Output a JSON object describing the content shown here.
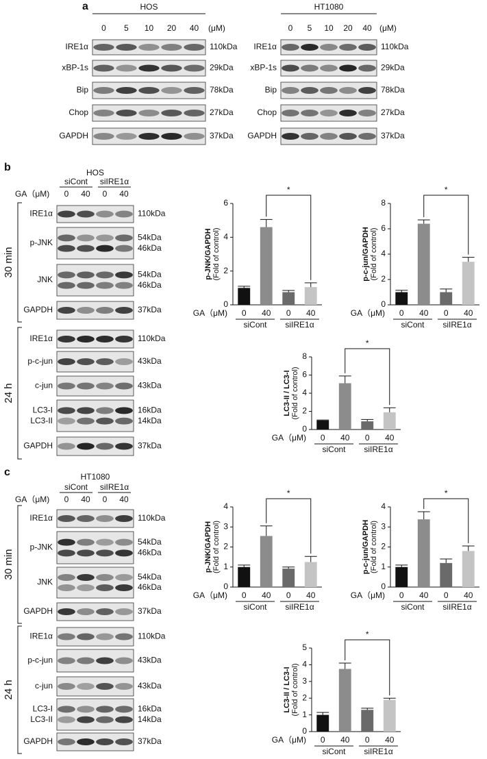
{
  "figure": {
    "panel_a": {
      "label": "a",
      "blots": [
        {
          "cell": "HOS",
          "doses": [
            "0",
            "5",
            "10",
            "20",
            "40"
          ],
          "unit": "(μM)",
          "rows": [
            {
              "labels": [
                "IRE1α"
              ],
              "sizes": [
                "110kDa"
              ]
            },
            {
              "labels": [
                "xBP-1s"
              ],
              "sizes": [
                "29kDa"
              ]
            },
            {
              "labels": [
                "Bip"
              ],
              "sizes": [
                "78kDa"
              ]
            },
            {
              "labels": [
                "Chop"
              ],
              "sizes": [
                "27kDa"
              ]
            },
            {
              "labels": [
                "GAPDH"
              ],
              "sizes": [
                "37kDa"
              ]
            }
          ]
        },
        {
          "cell": "HT1080",
          "doses": [
            "0",
            "5",
            "10",
            "20",
            "40"
          ],
          "unit": "(μM)",
          "rows": [
            {
              "labels": [
                "IRE1α"
              ],
              "sizes": [
                "110kDa"
              ]
            },
            {
              "labels": [
                "xBP-1s"
              ],
              "sizes": [
                "29kDa"
              ]
            },
            {
              "labels": [
                "Bip"
              ],
              "sizes": [
                "78kDa"
              ]
            },
            {
              "labels": [
                "Chop"
              ],
              "sizes": [
                "27kDa"
              ]
            },
            {
              "labels": [
                "GAPDH"
              ],
              "sizes": [
                "37kDa"
              ]
            }
          ]
        }
      ]
    },
    "panel_b": {
      "label": "b",
      "cell": "HOS",
      "groups": [
        "siCont",
        "siIRE1α"
      ],
      "dose_label": "GA（μM)",
      "doses": [
        "0",
        "40",
        "0",
        "40"
      ],
      "blocks": [
        {
          "time": "30 min",
          "rows": [
            {
              "labels": [
                "IRE1α"
              ],
              "sizes": [
                "110kDa"
              ]
            },
            {
              "labels": [
                "p-JNK"
              ],
              "sizes": [
                "54kDa",
                "46kDa"
              ]
            },
            {
              "labels": [
                "JNK"
              ],
              "sizes": [
                "54kDa",
                "46kDa"
              ]
            },
            {
              "labels": [
                "GAPDH"
              ],
              "sizes": [
                "37kDa"
              ]
            }
          ]
        },
        {
          "time": "24 h",
          "rows": [
            {
              "labels": [
                "IRE1α"
              ],
              "sizes": [
                "110kDa"
              ]
            },
            {
              "labels": [
                "p-c-jun"
              ],
              "sizes": [
                "43kDa"
              ]
            },
            {
              "labels": [
                "c-jun"
              ],
              "sizes": [
                "43kDa"
              ]
            },
            {
              "labels": [
                "LC3-I",
                "LC3-II"
              ],
              "sizes": [
                "16kDa",
                "14kDa"
              ]
            },
            {
              "labels": [
                "GAPDH"
              ],
              "sizes": [
                "37kDa"
              ]
            }
          ]
        }
      ]
    },
    "panel_c": {
      "label": "c",
      "cell": "HT1080",
      "groups": [
        "siCont",
        "siIRE1α"
      ],
      "dose_label": "GA（μM)",
      "doses": [
        "0",
        "40",
        "0",
        "40"
      ],
      "blocks": [
        {
          "time": "30 min",
          "rows": [
            {
              "labels": [
                "IRE1α"
              ],
              "sizes": [
                "110kDa"
              ]
            },
            {
              "labels": [
                "p-JNK"
              ],
              "sizes": [
                "54kDa",
                "46kDa"
              ]
            },
            {
              "labels": [
                "JNK"
              ],
              "sizes": [
                "54kDa",
                "46kDa"
              ]
            },
            {
              "labels": [
                "GAPDH"
              ],
              "sizes": [
                "37kDa"
              ]
            }
          ]
        },
        {
          "time": "24 h",
          "rows": [
            {
              "labels": [
                "IRE1α"
              ],
              "sizes": [
                "110kDa"
              ]
            },
            {
              "labels": [
                "p-c-jun"
              ],
              "sizes": [
                "43kDa"
              ]
            },
            {
              "labels": [
                "c-jun"
              ],
              "sizes": [
                "43kDa"
              ]
            },
            {
              "labels": [
                "LC3-I",
                "LC3-II"
              ],
              "sizes": [
                "16kDa",
                "14kDa"
              ]
            },
            {
              "labels": [
                "GAPDH"
              ],
              "sizes": [
                "37kDa"
              ]
            }
          ]
        }
      ]
    }
  },
  "chart_data": [
    {
      "type": "bar",
      "y_label": "p-JNK/GAPDH",
      "y_sublabel": "(Fold of control)",
      "x_label": "GA（μM)",
      "categories": [
        "0",
        "40",
        "0",
        "40"
      ],
      "groups": [
        "siCont",
        "siIRE1α"
      ],
      "values": [
        1.0,
        4.6,
        0.75,
        1.05
      ],
      "errors": [
        0.1,
        0.45,
        0.1,
        0.25
      ],
      "colors": [
        "#111111",
        "#8c8c8c",
        "#6a6a6a",
        "#c4c4c4"
      ],
      "ylim": [
        0,
        6
      ],
      "yticks": [
        0,
        2,
        4,
        6
      ],
      "annotation": "*"
    },
    {
      "type": "bar",
      "y_label": "p-c-jun/GAPDH",
      "y_sublabel": "(Fold of control)",
      "x_label": "GA（μM)",
      "categories": [
        "0",
        "40",
        "0",
        "40"
      ],
      "groups": [
        "siCont",
        "siIRE1α"
      ],
      "values": [
        1.0,
        6.4,
        1.0,
        3.4
      ],
      "errors": [
        0.15,
        0.3,
        0.25,
        0.35
      ],
      "colors": [
        "#111111",
        "#8c8c8c",
        "#6a6a6a",
        "#c4c4c4"
      ],
      "ylim": [
        0,
        8
      ],
      "yticks": [
        0,
        2,
        4,
        6,
        8
      ],
      "annotation": "*"
    },
    {
      "type": "bar",
      "y_label": "LC3-II / LC3-I",
      "y_sublabel": "(Fold of control)",
      "x_label": "GA（μM)",
      "categories": [
        "0",
        "40",
        "0",
        "40"
      ],
      "groups": [
        "siCont",
        "siIRE1α"
      ],
      "values": [
        1.0,
        5.1,
        0.9,
        1.9
      ],
      "errors": [
        0.05,
        0.8,
        0.2,
        0.5
      ],
      "colors": [
        "#111111",
        "#8c8c8c",
        "#6a6a6a",
        "#c4c4c4"
      ],
      "ylim": [
        0,
        8
      ],
      "yticks": [
        0,
        2,
        4,
        6,
        8
      ],
      "annotation": "*"
    },
    {
      "type": "bar",
      "y_label": "p-JNK/GAPDH",
      "y_sublabel": "(Fold of control)",
      "x_label": "GA（μM)",
      "categories": [
        "0",
        "40",
        "0",
        "40"
      ],
      "groups": [
        "siCont",
        "siIRE1α"
      ],
      "values": [
        1.0,
        2.55,
        0.92,
        1.25
      ],
      "errors": [
        0.1,
        0.5,
        0.08,
        0.28
      ],
      "colors": [
        "#111111",
        "#8c8c8c",
        "#6a6a6a",
        "#c4c4c4"
      ],
      "ylim": [
        0,
        4
      ],
      "yticks": [
        0,
        1,
        2,
        3,
        4
      ],
      "annotation": "*"
    },
    {
      "type": "bar",
      "y_label": "p-c-jun/GAPDH",
      "y_sublabel": "(Fold of control)",
      "x_label": "GA（μM)",
      "categories": [
        "0",
        "40",
        "0",
        "40"
      ],
      "groups": [
        "siCont",
        "siIRE1α"
      ],
      "values": [
        1.0,
        3.38,
        1.2,
        1.8
      ],
      "errors": [
        0.1,
        0.38,
        0.2,
        0.25
      ],
      "colors": [
        "#111111",
        "#8c8c8c",
        "#6a6a6a",
        "#c4c4c4"
      ],
      "ylim": [
        0,
        4
      ],
      "yticks": [
        0,
        1,
        2,
        3,
        4
      ],
      "annotation": "*"
    },
    {
      "type": "bar",
      "y_label": "LC3-II / LC3-I",
      "y_sublabel": "(Fold of control)",
      "x_label": "GA（μM)",
      "categories": [
        "0",
        "40",
        "0",
        "40"
      ],
      "groups": [
        "siCont",
        "siIRE1α"
      ],
      "values": [
        1.0,
        3.75,
        1.3,
        1.9
      ],
      "errors": [
        0.15,
        0.35,
        0.1,
        0.1
      ],
      "colors": [
        "#111111",
        "#8c8c8c",
        "#6a6a6a",
        "#c4c4c4"
      ],
      "ylim": [
        0,
        5
      ],
      "yticks": [
        0,
        1,
        2,
        3,
        4,
        5
      ],
      "annotation": "*"
    }
  ]
}
